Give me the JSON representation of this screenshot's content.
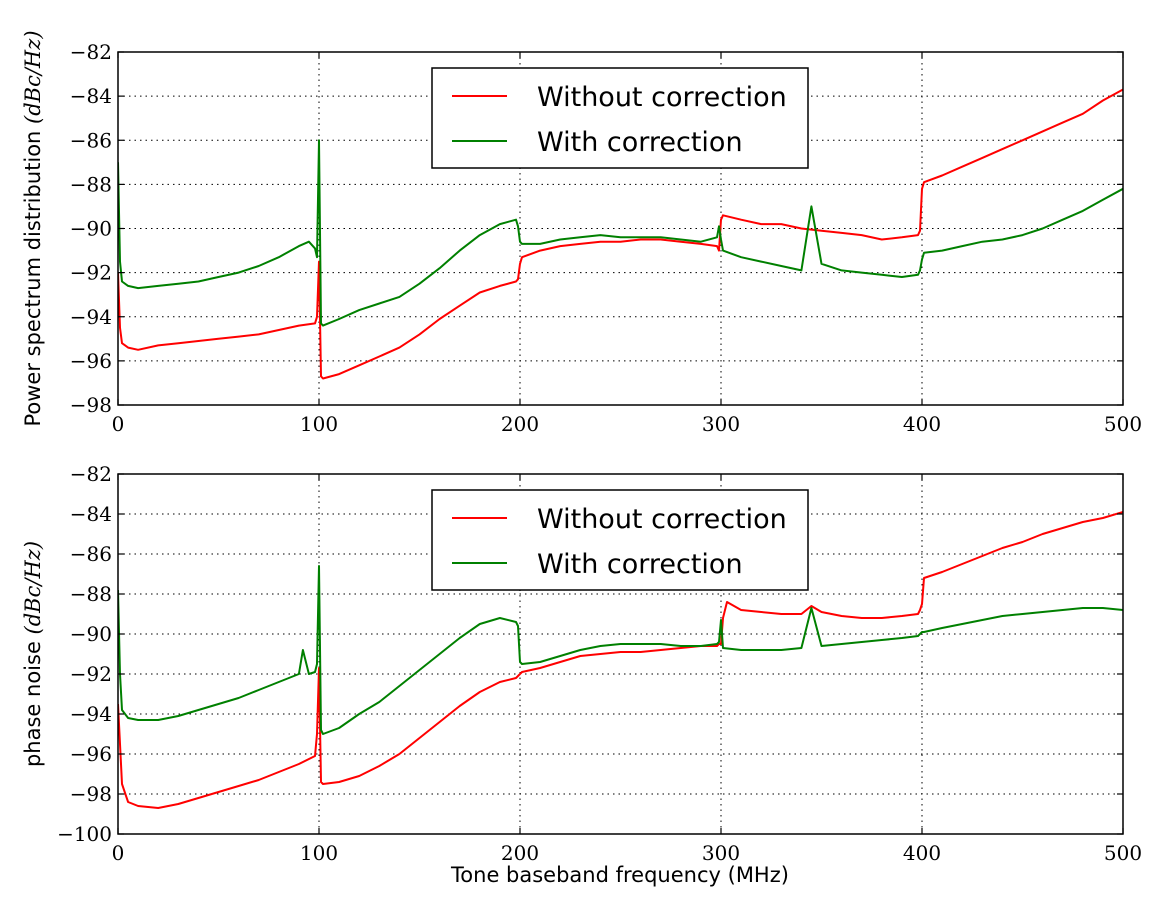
{
  "chart_data": [
    {
      "type": "line",
      "ylabel": "Power spectrum distribution",
      "yunit": "(dBc/Hz)",
      "xlabel": "",
      "xlim": [
        0,
        500
      ],
      "ylim": [
        -98,
        -82
      ],
      "xticks": [
        0,
        100,
        200,
        300,
        400,
        500
      ],
      "yticks": [
        -98,
        -96,
        -94,
        -92,
        -90,
        -88,
        -86,
        -84,
        -82
      ],
      "grid": true,
      "legend_position": "top-center",
      "series": [
        {
          "name": "Without correction",
          "color": "#ff0000",
          "x": [
            0,
            1,
            2,
            5,
            10,
            20,
            30,
            40,
            50,
            60,
            70,
            80,
            90,
            98,
            99,
            100,
            101,
            102,
            110,
            120,
            130,
            140,
            150,
            160,
            170,
            180,
            190,
            198,
            199,
            200,
            201,
            210,
            220,
            230,
            240,
            250,
            260,
            270,
            280,
            290,
            298,
            299,
            300,
            301,
            310,
            320,
            330,
            340,
            350,
            360,
            370,
            380,
            390,
            398,
            399,
            400,
            401,
            410,
            420,
            430,
            440,
            450,
            460,
            470,
            480,
            490,
            500
          ],
          "y": [
            -92.0,
            -94.5,
            -95.2,
            -95.4,
            -95.5,
            -95.3,
            -95.2,
            -95.1,
            -95.0,
            -94.9,
            -94.8,
            -94.6,
            -94.4,
            -94.3,
            -94.0,
            -91.5,
            -96.7,
            -96.8,
            -96.6,
            -96.2,
            -95.8,
            -95.4,
            -94.8,
            -94.1,
            -93.5,
            -92.9,
            -92.6,
            -92.4,
            -92.3,
            -91.6,
            -91.3,
            -91.0,
            -90.8,
            -90.7,
            -90.6,
            -90.6,
            -90.5,
            -90.5,
            -90.6,
            -90.7,
            -90.8,
            -91.0,
            -89.6,
            -89.4,
            -89.6,
            -89.8,
            -89.8,
            -90.0,
            -90.1,
            -90.2,
            -90.3,
            -90.5,
            -90.4,
            -90.3,
            -90.1,
            -88.2,
            -87.9,
            -87.6,
            -87.2,
            -86.8,
            -86.4,
            -86.0,
            -85.6,
            -85.2,
            -84.8,
            -84.2,
            -83.7
          ]
        },
        {
          "name": "With correction",
          "color": "#008000",
          "x": [
            0,
            1,
            2,
            5,
            10,
            20,
            30,
            40,
            50,
            60,
            70,
            80,
            90,
            95,
            98,
            99,
            100,
            101,
            102,
            110,
            120,
            130,
            140,
            150,
            160,
            170,
            180,
            190,
            198,
            199,
            200,
            201,
            210,
            220,
            230,
            240,
            250,
            260,
            270,
            280,
            290,
            298,
            299,
            300,
            301,
            310,
            320,
            330,
            340,
            345,
            350,
            360,
            370,
            380,
            390,
            398,
            399,
            400,
            401,
            410,
            420,
            430,
            440,
            450,
            460,
            470,
            480,
            490,
            500
          ],
          "y": [
            -87.0,
            -91.5,
            -92.4,
            -92.6,
            -92.7,
            -92.6,
            -92.5,
            -92.4,
            -92.2,
            -92.0,
            -91.7,
            -91.3,
            -90.8,
            -90.6,
            -90.9,
            -91.3,
            -86.0,
            -94.3,
            -94.4,
            -94.1,
            -93.7,
            -93.4,
            -93.1,
            -92.5,
            -91.8,
            -91.0,
            -90.3,
            -89.8,
            -89.6,
            -89.9,
            -90.6,
            -90.7,
            -90.7,
            -90.5,
            -90.4,
            -90.3,
            -90.4,
            -90.4,
            -90.4,
            -90.5,
            -90.6,
            -90.4,
            -89.9,
            -90.5,
            -91.0,
            -91.3,
            -91.5,
            -91.7,
            -91.9,
            -89.0,
            -91.6,
            -91.9,
            -92.0,
            -92.1,
            -92.2,
            -92.1,
            -91.9,
            -91.4,
            -91.1,
            -91.0,
            -90.8,
            -90.6,
            -90.5,
            -90.3,
            -90.0,
            -89.6,
            -89.2,
            -88.7,
            -88.2
          ]
        }
      ]
    },
    {
      "type": "line",
      "ylabel": "phase noise",
      "yunit": "(dBc/Hz)",
      "xlabel": "Tone baseband frequency (MHz)",
      "xlim": [
        0,
        500
      ],
      "ylim": [
        -100,
        -82
      ],
      "xticks": [
        0,
        100,
        200,
        300,
        400,
        500
      ],
      "yticks": [
        -100,
        -98,
        -96,
        -94,
        -92,
        -90,
        -88,
        -86,
        -84,
        -82
      ],
      "grid": true,
      "legend_position": "top-center",
      "series": [
        {
          "name": "Without correction",
          "color": "#ff0000",
          "x": [
            0,
            1,
            2,
            5,
            10,
            20,
            30,
            40,
            50,
            60,
            70,
            80,
            90,
            98,
            99,
            100,
            101,
            102,
            110,
            120,
            130,
            140,
            150,
            160,
            170,
            180,
            190,
            198,
            199,
            200,
            201,
            210,
            220,
            230,
            240,
            250,
            260,
            270,
            280,
            290,
            298,
            299,
            300,
            301,
            303,
            310,
            320,
            330,
            340,
            345,
            350,
            360,
            370,
            380,
            390,
            398,
            399,
            400,
            401,
            410,
            420,
            430,
            440,
            450,
            460,
            470,
            480,
            490,
            500
          ],
          "y": [
            -93.5,
            -95.5,
            -97.5,
            -98.4,
            -98.6,
            -98.7,
            -98.5,
            -98.2,
            -97.9,
            -97.6,
            -97.3,
            -96.9,
            -96.5,
            -96.1,
            -95.0,
            -91.7,
            -97.4,
            -97.5,
            -97.4,
            -97.1,
            -96.6,
            -96.0,
            -95.2,
            -94.4,
            -93.6,
            -92.9,
            -92.4,
            -92.2,
            -92.1,
            -92.0,
            -91.9,
            -91.7,
            -91.4,
            -91.1,
            -91.0,
            -90.9,
            -90.9,
            -90.8,
            -90.7,
            -90.6,
            -90.6,
            -90.5,
            -90.5,
            -89.2,
            -88.4,
            -88.8,
            -88.9,
            -89.0,
            -89.0,
            -88.6,
            -88.9,
            -89.1,
            -89.2,
            -89.2,
            -89.1,
            -89.0,
            -88.8,
            -88.5,
            -87.2,
            -86.9,
            -86.5,
            -86.1,
            -85.7,
            -85.4,
            -85.0,
            -84.7,
            -84.4,
            -84.2,
            -83.9
          ]
        },
        {
          "name": "With correction",
          "color": "#008000",
          "x": [
            0,
            1,
            2,
            5,
            10,
            20,
            30,
            40,
            50,
            60,
            70,
            80,
            90,
            92,
            95,
            98,
            99,
            100,
            101,
            102,
            110,
            120,
            130,
            140,
            150,
            160,
            170,
            180,
            190,
            198,
            199,
            200,
            201,
            210,
            220,
            230,
            240,
            250,
            260,
            270,
            280,
            290,
            298,
            299,
            300,
            301,
            310,
            320,
            330,
            340,
            345,
            350,
            360,
            370,
            380,
            390,
            398,
            399,
            400,
            401,
            410,
            420,
            430,
            440,
            450,
            460,
            470,
            480,
            490,
            500
          ],
          "y": [
            -87.8,
            -92.0,
            -93.8,
            -94.2,
            -94.3,
            -94.3,
            -94.1,
            -93.8,
            -93.5,
            -93.2,
            -92.8,
            -92.4,
            -92.0,
            -90.8,
            -92.0,
            -91.9,
            -91.5,
            -86.6,
            -94.8,
            -95.0,
            -94.7,
            -94.0,
            -93.4,
            -92.6,
            -91.8,
            -91.0,
            -90.2,
            -89.5,
            -89.2,
            -89.4,
            -89.6,
            -91.4,
            -91.5,
            -91.4,
            -91.1,
            -90.8,
            -90.6,
            -90.5,
            -90.5,
            -90.5,
            -90.6,
            -90.6,
            -90.5,
            -90.4,
            -89.3,
            -90.7,
            -90.8,
            -90.8,
            -90.8,
            -90.7,
            -88.7,
            -90.6,
            -90.5,
            -90.4,
            -90.3,
            -90.2,
            -90.1,
            -90.0,
            -89.9,
            -89.9,
            -89.7,
            -89.5,
            -89.3,
            -89.1,
            -89.0,
            -88.9,
            -88.8,
            -88.7,
            -88.7,
            -88.8
          ]
        }
      ]
    }
  ]
}
